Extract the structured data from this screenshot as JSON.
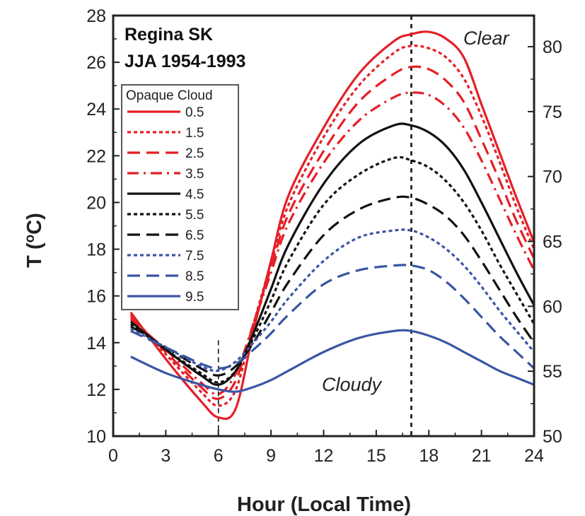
{
  "chart_data": {
    "type": "line",
    "title_lines": [
      "Regina SK",
      "JJA 1954-1993"
    ],
    "xlabel": "Hour (Local Time)",
    "ylabel_main": "T (",
    "ylabel_sup": "o",
    "ylabel_end": "C)",
    "xlim": [
      0,
      24
    ],
    "ylim": [
      10,
      28
    ],
    "y2lim": [
      50,
      82.4
    ],
    "xticks": [
      0,
      3,
      6,
      9,
      12,
      15,
      18,
      21,
      24
    ],
    "yticks": [
      10,
      12,
      14,
      16,
      18,
      20,
      22,
      24,
      26,
      28
    ],
    "y2ticks": [
      50,
      55,
      60,
      65,
      70,
      75,
      80
    ],
    "grid": false,
    "legend": {
      "title": "Opaque Cloud",
      "placement": "top-left"
    },
    "vlines": [
      6,
      17
    ],
    "annotations": {
      "clear": "Clear",
      "cloudy": "Cloudy"
    },
    "series": [
      {
        "name": "0.5",
        "color": "#e41f26",
        "style": "solid",
        "points": [
          [
            1,
            15.3
          ],
          [
            3,
            13.3
          ],
          [
            5,
            11.5
          ],
          [
            6,
            10.8
          ],
          [
            7,
            11.2
          ],
          [
            8,
            14.5
          ],
          [
            9,
            17.5
          ],
          [
            10,
            20.3
          ],
          [
            12,
            23.2
          ],
          [
            14,
            25.5
          ],
          [
            16,
            26.9
          ],
          [
            17,
            27.2
          ],
          [
            18,
            27.3
          ],
          [
            19,
            27.0
          ],
          [
            20,
            26.2
          ],
          [
            21,
            24.2
          ],
          [
            22,
            22.2
          ],
          [
            23,
            20.2
          ],
          [
            24,
            18.3
          ]
        ]
      },
      {
        "name": "1.5",
        "color": "#e41f26",
        "style": "short-dash",
        "points": [
          [
            1,
            15.2
          ],
          [
            3,
            13.5
          ],
          [
            5,
            11.9
          ],
          [
            6,
            11.3
          ],
          [
            7,
            12.0
          ],
          [
            8,
            14.8
          ],
          [
            9,
            17.4
          ],
          [
            10,
            19.9
          ],
          [
            12,
            22.8
          ],
          [
            14,
            25.0
          ],
          [
            16,
            26.4
          ],
          [
            17,
            26.7
          ],
          [
            18,
            26.6
          ],
          [
            19,
            26.2
          ],
          [
            20,
            25.3
          ],
          [
            21,
            23.7
          ],
          [
            22,
            21.8
          ],
          [
            23,
            19.8
          ],
          [
            24,
            18.0
          ]
        ]
      },
      {
        "name": "2.5",
        "color": "#e41f26",
        "style": "long-dash",
        "points": [
          [
            1,
            15.1
          ],
          [
            3,
            13.6
          ],
          [
            5,
            12.1
          ],
          [
            6,
            11.6
          ],
          [
            7,
            12.4
          ],
          [
            8,
            14.8
          ],
          [
            9,
            17.2
          ],
          [
            10,
            19.5
          ],
          [
            12,
            22.2
          ],
          [
            14,
            24.3
          ],
          [
            16,
            25.5
          ],
          [
            17,
            25.8
          ],
          [
            18,
            25.7
          ],
          [
            19,
            25.2
          ],
          [
            20,
            24.3
          ],
          [
            21,
            22.7
          ],
          [
            22,
            21.0
          ],
          [
            23,
            19.2
          ],
          [
            24,
            17.6
          ]
        ]
      },
      {
        "name": "3.5",
        "color": "#e41f26",
        "style": "dash-dot",
        "points": [
          [
            1,
            15.0
          ],
          [
            3,
            13.7
          ],
          [
            5,
            12.3
          ],
          [
            6,
            11.8
          ],
          [
            7,
            12.7
          ],
          [
            8,
            14.8
          ],
          [
            9,
            17.0
          ],
          [
            10,
            19.1
          ],
          [
            12,
            21.7
          ],
          [
            14,
            23.5
          ],
          [
            16,
            24.5
          ],
          [
            17,
            24.7
          ],
          [
            18,
            24.6
          ],
          [
            19,
            24.1
          ],
          [
            20,
            23.2
          ],
          [
            21,
            21.8
          ],
          [
            22,
            20.2
          ],
          [
            23,
            18.6
          ],
          [
            24,
            17.1
          ]
        ]
      },
      {
        "name": "4.5",
        "color": "#111111",
        "style": "solid",
        "points": [
          [
            1,
            14.9
          ],
          [
            3,
            13.7
          ],
          [
            5,
            12.6
          ],
          [
            6,
            12.2
          ],
          [
            7,
            12.8
          ],
          [
            8,
            14.4
          ],
          [
            9,
            16.3
          ],
          [
            10,
            18.2
          ],
          [
            12,
            20.8
          ],
          [
            14,
            22.5
          ],
          [
            16,
            23.3
          ],
          [
            17,
            23.3
          ],
          [
            18,
            23.0
          ],
          [
            19,
            22.4
          ],
          [
            20,
            21.4
          ],
          [
            21,
            20.0
          ],
          [
            22,
            18.5
          ],
          [
            23,
            17.0
          ],
          [
            24,
            15.6
          ]
        ]
      },
      {
        "name": "5.5",
        "color": "#111111",
        "style": "short-dash",
        "points": [
          [
            1,
            14.8
          ],
          [
            3,
            13.7
          ],
          [
            5,
            12.7
          ],
          [
            6,
            12.3
          ],
          [
            7,
            12.8
          ],
          [
            8,
            14.2
          ],
          [
            9,
            15.8
          ],
          [
            10,
            17.5
          ],
          [
            12,
            19.9
          ],
          [
            14,
            21.2
          ],
          [
            16,
            21.9
          ],
          [
            17,
            21.8
          ],
          [
            18,
            21.5
          ],
          [
            19,
            20.9
          ],
          [
            20,
            20.0
          ],
          [
            21,
            18.8
          ],
          [
            22,
            17.4
          ],
          [
            23,
            16.1
          ],
          [
            24,
            14.8
          ]
        ]
      },
      {
        "name": "6.5",
        "color": "#111111",
        "style": "long-dash",
        "points": [
          [
            1,
            14.7
          ],
          [
            3,
            13.8
          ],
          [
            5,
            12.9
          ],
          [
            6,
            12.6
          ],
          [
            7,
            13.0
          ],
          [
            8,
            14.0
          ],
          [
            9,
            15.3
          ],
          [
            10,
            16.6
          ],
          [
            12,
            18.6
          ],
          [
            14,
            19.7
          ],
          [
            16,
            20.2
          ],
          [
            17,
            20.2
          ],
          [
            18,
            19.9
          ],
          [
            19,
            19.4
          ],
          [
            20,
            18.6
          ],
          [
            21,
            17.5
          ],
          [
            22,
            16.3
          ],
          [
            23,
            15.1
          ],
          [
            24,
            14.0
          ]
        ]
      },
      {
        "name": "7.5",
        "color": "#3a55a4",
        "style": "short-dash",
        "points": [
          [
            1,
            14.6
          ],
          [
            3,
            13.8
          ],
          [
            5,
            13.0
          ],
          [
            6,
            12.8
          ],
          [
            7,
            13.2
          ],
          [
            8,
            14.0
          ],
          [
            9,
            14.9
          ],
          [
            10,
            15.9
          ],
          [
            12,
            17.5
          ],
          [
            14,
            18.5
          ],
          [
            16,
            18.8
          ],
          [
            17,
            18.8
          ],
          [
            18,
            18.5
          ],
          [
            19,
            18.0
          ],
          [
            20,
            17.3
          ],
          [
            21,
            16.4
          ],
          [
            22,
            15.4
          ],
          [
            23,
            14.5
          ],
          [
            24,
            13.6
          ]
        ]
      },
      {
        "name": "8.5",
        "color": "#3a55a4",
        "style": "long-dash",
        "points": [
          [
            1,
            14.5
          ],
          [
            3,
            13.8
          ],
          [
            5,
            13.1
          ],
          [
            6,
            12.9
          ],
          [
            7,
            13.1
          ],
          [
            8,
            13.7
          ],
          [
            9,
            14.4
          ],
          [
            10,
            15.2
          ],
          [
            12,
            16.5
          ],
          [
            14,
            17.1
          ],
          [
            16,
            17.3
          ],
          [
            17,
            17.3
          ],
          [
            18,
            17.1
          ],
          [
            19,
            16.6
          ],
          [
            20,
            15.9
          ],
          [
            21,
            15.1
          ],
          [
            22,
            14.3
          ],
          [
            23,
            13.6
          ],
          [
            24,
            12.9
          ]
        ]
      },
      {
        "name": "9.5",
        "color": "#3a55a4",
        "style": "solid",
        "points": [
          [
            1,
            13.4
          ],
          [
            3,
            12.7
          ],
          [
            5,
            12.2
          ],
          [
            6,
            12.0
          ],
          [
            7,
            11.9
          ],
          [
            8,
            12.1
          ],
          [
            9,
            12.4
          ],
          [
            10,
            12.8
          ],
          [
            12,
            13.6
          ],
          [
            14,
            14.2
          ],
          [
            16,
            14.5
          ],
          [
            17,
            14.5
          ],
          [
            18,
            14.3
          ],
          [
            19,
            14.0
          ],
          [
            20,
            13.6
          ],
          [
            21,
            13.2
          ],
          [
            22,
            12.8
          ],
          [
            23,
            12.5
          ],
          [
            24,
            12.2
          ]
        ]
      }
    ]
  }
}
